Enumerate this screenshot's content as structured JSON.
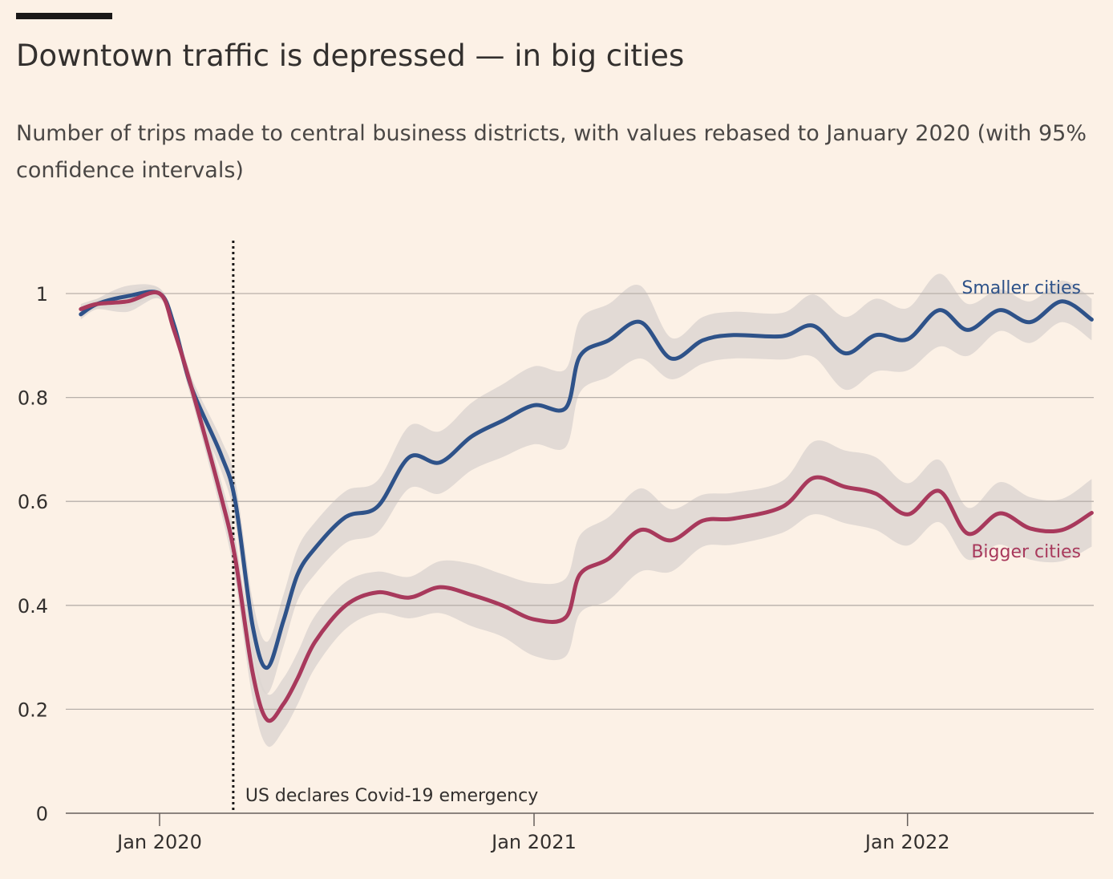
{
  "header": {
    "title": "Downtown traffic is depressed — in big cities",
    "subtitle": "Number of trips made to central business districts, with values rebased to January 2020 (with 95% confidence intervals)"
  },
  "colors": {
    "background": "#fcf1e6",
    "smaller": "#2e5289",
    "bigger": "#a8395c",
    "band": "#ddd6d1",
    "grid": "#b8b0aa"
  },
  "chart_data": {
    "type": "line",
    "xlabel": "",
    "ylabel": "",
    "x_ticks": [
      {
        "label": "Jan 2020",
        "value": "2020-01-01"
      },
      {
        "label": "Jan 2021",
        "value": "2021-01-01"
      },
      {
        "label": "Jan 2022",
        "value": "2022-01-01"
      }
    ],
    "y_ticks": [
      {
        "label": "0",
        "value": 0
      },
      {
        "label": "0.2",
        "value": 0.2
      },
      {
        "label": "0.4",
        "value": 0.4
      },
      {
        "label": "0.6",
        "value": 0.6
      },
      {
        "label": "0.8",
        "value": 0.8
      },
      {
        "label": "1",
        "value": 1
      }
    ],
    "xlim": [
      "2019-10-16",
      "2022-06-30"
    ],
    "ylim": [
      0,
      1.1
    ],
    "grid": true,
    "annotation": {
      "date": "2020-03-13",
      "text": "US declares Covid-19 emergency"
    },
    "series": [
      {
        "name": "Smaller cities",
        "color_key": "smaller",
        "points": [
          [
            "2019-10-16",
            0.96
          ],
          [
            "2019-11-01",
            0.98
          ],
          [
            "2019-12-01",
            0.995
          ],
          [
            "2020-01-01",
            1.0
          ],
          [
            "2020-01-15",
            0.94
          ],
          [
            "2020-02-01",
            0.82
          ],
          [
            "2020-03-01",
            0.69
          ],
          [
            "2020-03-15",
            0.6
          ],
          [
            "2020-04-01",
            0.36
          ],
          [
            "2020-04-15",
            0.28
          ],
          [
            "2020-05-01",
            0.37
          ],
          [
            "2020-05-15",
            0.46
          ],
          [
            "2020-06-01",
            0.51
          ],
          [
            "2020-07-01",
            0.57
          ],
          [
            "2020-08-01",
            0.59
          ],
          [
            "2020-09-01",
            0.685
          ],
          [
            "2020-10-01",
            0.675
          ],
          [
            "2020-11-01",
            0.725
          ],
          [
            "2020-12-01",
            0.755
          ],
          [
            "2021-01-01",
            0.785
          ],
          [
            "2021-02-01",
            0.78
          ],
          [
            "2021-02-15",
            0.88
          ],
          [
            "2021-03-15",
            0.91
          ],
          [
            "2021-04-15",
            0.945
          ],
          [
            "2021-05-15",
            0.875
          ],
          [
            "2021-06-15",
            0.91
          ],
          [
            "2021-07-15",
            0.92
          ],
          [
            "2021-09-01",
            0.918
          ],
          [
            "2021-10-01",
            0.938
          ],
          [
            "2021-11-01",
            0.885
          ],
          [
            "2021-12-01",
            0.92
          ],
          [
            "2022-01-01",
            0.912
          ],
          [
            "2022-02-01",
            0.968
          ],
          [
            "2022-03-01",
            0.93
          ],
          [
            "2022-04-01",
            0.968
          ],
          [
            "2022-05-01",
            0.945
          ],
          [
            "2022-06-01",
            0.985
          ],
          [
            "2022-06-30",
            0.95
          ]
        ],
        "ci_half_width": [
          0.01,
          0.01,
          0.02,
          0.01,
          0.01,
          0.02,
          0.03,
          0.04,
          0.05,
          0.05,
          0.05,
          0.05,
          0.05,
          0.05,
          0.05,
          0.06,
          0.06,
          0.065,
          0.07,
          0.075,
          0.075,
          0.07,
          0.07,
          0.07,
          0.04,
          0.045,
          0.045,
          0.045,
          0.06,
          0.07,
          0.07,
          0.06,
          0.07,
          0.05,
          0.04,
          0.04,
          0.04,
          0.04
        ]
      },
      {
        "name": "Bigger cities",
        "color_key": "bigger",
        "points": [
          [
            "2019-10-16",
            0.97
          ],
          [
            "2019-11-01",
            0.98
          ],
          [
            "2019-12-01",
            0.985
          ],
          [
            "2020-01-01",
            1.0
          ],
          [
            "2020-01-15",
            0.93
          ],
          [
            "2020-02-01",
            0.82
          ],
          [
            "2020-03-01",
            0.61
          ],
          [
            "2020-03-15",
            0.49
          ],
          [
            "2020-04-01",
            0.27
          ],
          [
            "2020-04-15",
            0.18
          ],
          [
            "2020-05-01",
            0.21
          ],
          [
            "2020-05-15",
            0.26
          ],
          [
            "2020-06-01",
            0.33
          ],
          [
            "2020-07-01",
            0.4
          ],
          [
            "2020-08-01",
            0.425
          ],
          [
            "2020-09-01",
            0.415
          ],
          [
            "2020-10-01",
            0.435
          ],
          [
            "2020-11-01",
            0.42
          ],
          [
            "2020-12-01",
            0.4
          ],
          [
            "2021-01-01",
            0.373
          ],
          [
            "2021-02-01",
            0.377
          ],
          [
            "2021-02-15",
            0.46
          ],
          [
            "2021-03-15",
            0.49
          ],
          [
            "2021-04-15",
            0.545
          ],
          [
            "2021-05-15",
            0.525
          ],
          [
            "2021-06-15",
            0.563
          ],
          [
            "2021-07-15",
            0.567
          ],
          [
            "2021-09-01",
            0.59
          ],
          [
            "2021-10-01",
            0.645
          ],
          [
            "2021-11-01",
            0.628
          ],
          [
            "2021-12-01",
            0.615
          ],
          [
            "2022-01-01",
            0.575
          ],
          [
            "2022-02-01",
            0.62
          ],
          [
            "2022-03-01",
            0.538
          ],
          [
            "2022-04-01",
            0.577
          ],
          [
            "2022-05-01",
            0.548
          ],
          [
            "2022-06-01",
            0.545
          ],
          [
            "2022-06-30",
            0.578
          ]
        ],
        "ci_half_width": [
          0.01,
          0.01,
          0.02,
          0.01,
          0.01,
          0.02,
          0.03,
          0.04,
          0.05,
          0.05,
          0.05,
          0.05,
          0.05,
          0.045,
          0.04,
          0.04,
          0.05,
          0.06,
          0.06,
          0.07,
          0.075,
          0.075,
          0.08,
          0.08,
          0.06,
          0.05,
          0.05,
          0.05,
          0.07,
          0.07,
          0.07,
          0.06,
          0.06,
          0.05,
          0.06,
          0.06,
          0.06,
          0.065
        ]
      }
    ]
  }
}
